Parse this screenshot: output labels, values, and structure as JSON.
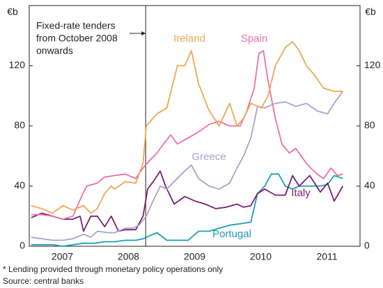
{
  "chart_data": {
    "type": "line",
    "y_unit_left": "€b",
    "y_unit_right": "€b",
    "annotation": {
      "lines": [
        "Fixed-rate tenders",
        "from October 2008",
        "onwards"
      ],
      "x": 2008.76
    },
    "xlim": [
      2007,
      2012
    ],
    "xticks": [
      {
        "value": 2007.5,
        "label": "2007"
      },
      {
        "value": 2008.5,
        "label": "2008"
      },
      {
        "value": 2009.5,
        "label": "2009"
      },
      {
        "value": 2010.5,
        "label": "2010"
      },
      {
        "value": 2011.5,
        "label": "2011"
      }
    ],
    "ylim": [
      0,
      160
    ],
    "yticks": [
      0,
      40,
      80,
      120
    ],
    "series": [
      {
        "name": "Portugal",
        "color": "#1a9fb0",
        "x": [
          2007.03,
          2007.19,
          2007.35,
          2007.51,
          2007.66,
          2007.82,
          2007.98,
          2008.14,
          2008.29,
          2008.45,
          2008.61,
          2008.72,
          2008.82,
          2008.93,
          2009.08,
          2009.24,
          2009.4,
          2009.56,
          2009.72,
          2009.87,
          2010.03,
          2010.19,
          2010.35,
          2010.45,
          2010.56,
          2010.66,
          2010.77,
          2010.87,
          2010.98,
          2011.08,
          2011.24,
          2011.4,
          2011.51,
          2011.61,
          2011.74
        ],
        "values": [
          1,
          1,
          1,
          0,
          1,
          2,
          2,
          3,
          3,
          4,
          4,
          5,
          7,
          9,
          4,
          4,
          4,
          10,
          10,
          12,
          14,
          15,
          16,
          35,
          40,
          48,
          48,
          40,
          38,
          40,
          40,
          40,
          41,
          47,
          45
        ]
      },
      {
        "name": "Italy",
        "color": "#7b1f6e",
        "x": [
          2007.03,
          2007.19,
          2007.35,
          2007.51,
          2007.66,
          2007.77,
          2007.82,
          2007.93,
          2008.03,
          2008.14,
          2008.24,
          2008.35,
          2008.45,
          2008.61,
          2008.72,
          2008.79,
          2008.89,
          2008.98,
          2009.06,
          2009.19,
          2009.35,
          2009.51,
          2009.66,
          2009.82,
          2009.98,
          2010.14,
          2010.24,
          2010.35,
          2010.45,
          2010.56,
          2010.72,
          2010.87,
          2010.98,
          2011.08,
          2011.24,
          2011.4,
          2011.51,
          2011.61,
          2011.74
        ],
        "values": [
          19,
          22,
          20,
          18,
          18,
          20,
          10,
          20,
          20,
          13,
          20,
          10,
          11,
          11,
          20,
          38,
          44,
          50,
          40,
          28,
          33,
          30,
          28,
          25,
          26,
          28,
          26,
          27,
          35,
          38,
          34,
          34,
          47,
          40,
          47,
          36,
          42,
          30,
          40
        ]
      },
      {
        "name": "Greece",
        "color": "#a8a2cf",
        "x": [
          2007.03,
          2007.19,
          2007.35,
          2007.51,
          2007.66,
          2007.82,
          2007.93,
          2008.03,
          2008.19,
          2008.29,
          2008.45,
          2008.56,
          2008.66,
          2008.77,
          2008.87,
          2008.98,
          2009.08,
          2009.19,
          2009.35,
          2009.45,
          2009.56,
          2009.72,
          2009.87,
          2010.03,
          2010.14,
          2010.24,
          2010.35,
          2010.45,
          2010.56,
          2010.72,
          2010.87,
          2011.03,
          2011.19,
          2011.35,
          2011.51,
          2011.61,
          2011.74
        ],
        "values": [
          6,
          5,
          4,
          4,
          5,
          8,
          6,
          10,
          9,
          9,
          12,
          12,
          14,
          20,
          30,
          40,
          38,
          43,
          50,
          54,
          45,
          40,
          38,
          42,
          52,
          60,
          72,
          93,
          92,
          95,
          96,
          93,
          95,
          90,
          88,
          95,
          103
        ]
      },
      {
        "name": "Spain",
        "color": "#ec6fa8",
        "x": [
          2007.03,
          2007.19,
          2007.35,
          2007.51,
          2007.66,
          2007.8,
          2007.87,
          2008.03,
          2008.14,
          2008.29,
          2008.45,
          2008.61,
          2008.72,
          2008.82,
          2008.93,
          2009.03,
          2009.14,
          2009.24,
          2009.4,
          2009.56,
          2009.72,
          2009.87,
          2010.03,
          2010.19,
          2010.29,
          2010.4,
          2010.47,
          2010.54,
          2010.61,
          2010.72,
          2010.82,
          2010.93,
          2011.03,
          2011.19,
          2011.35,
          2011.45,
          2011.56,
          2011.66,
          2011.74
        ],
        "values": [
          21,
          21,
          20,
          18,
          20,
          34,
          40,
          42,
          46,
          47,
          48,
          45,
          52,
          57,
          62,
          68,
          74,
          68,
          72,
          76,
          81,
          83,
          80,
          80,
          90,
          105,
          128,
          130,
          110,
          85,
          68,
          62,
          65,
          55,
          48,
          45,
          52,
          47,
          48
        ]
      },
      {
        "name": "Ireland",
        "color": "#f0a64e",
        "x": [
          2007.03,
          2007.19,
          2007.35,
          2007.51,
          2007.66,
          2007.82,
          2007.93,
          2008.03,
          2008.14,
          2008.24,
          2008.29,
          2008.45,
          2008.61,
          2008.72,
          2008.77,
          2008.93,
          2009.08,
          2009.24,
          2009.35,
          2009.45,
          2009.56,
          2009.72,
          2009.87,
          2010.03,
          2010.14,
          2010.24,
          2010.35,
          2010.51,
          2010.61,
          2010.72,
          2010.87,
          2010.98,
          2011.08,
          2011.19,
          2011.29,
          2011.45,
          2011.61,
          2011.74
        ],
        "values": [
          27,
          25,
          22,
          27,
          24,
          27,
          22,
          25,
          35,
          40,
          38,
          43,
          42,
          55,
          80,
          88,
          92,
          120,
          120,
          130,
          108,
          90,
          80,
          95,
          80,
          85,
          95,
          92,
          100,
          120,
          132,
          136,
          130,
          120,
          115,
          105,
          103,
          103
        ]
      }
    ],
    "footnotes": [
      "*    Lending provided through monetary policy operations only",
      "Source: central banks"
    ]
  }
}
